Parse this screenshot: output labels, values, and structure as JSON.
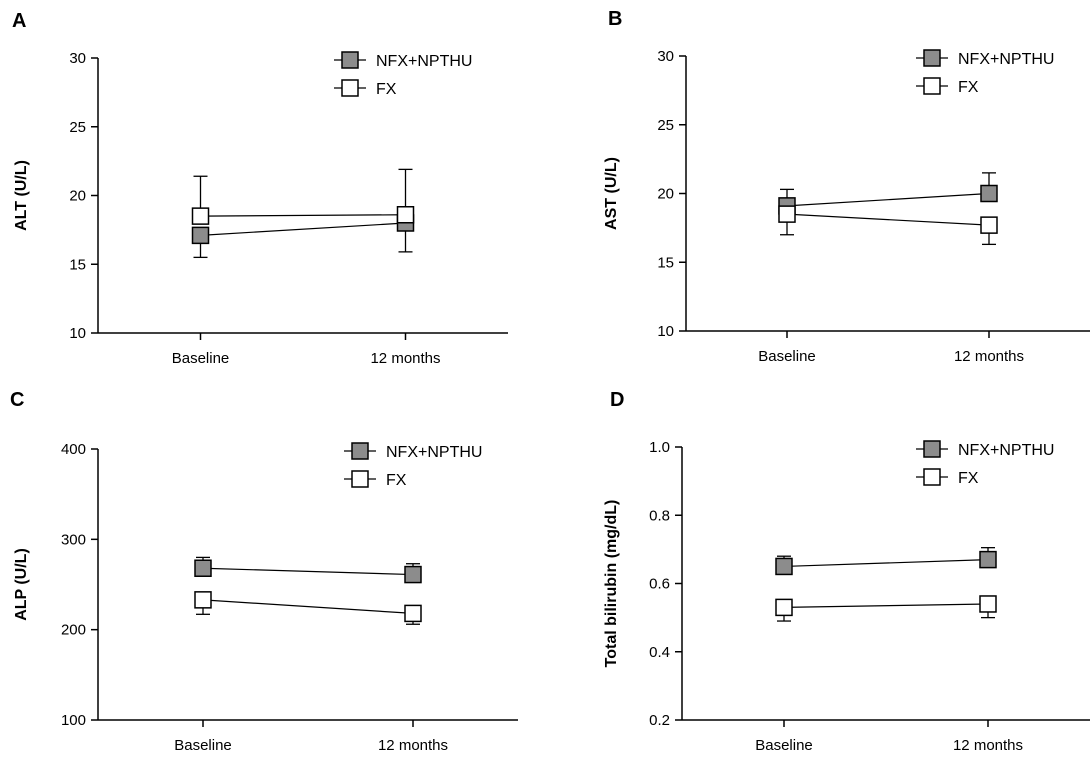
{
  "colors": {
    "series_filled": "#8c8c8c",
    "series_open": "#ffffff",
    "stroke": "#000000"
  },
  "legend": [
    "NFX+NPTHU",
    "FX"
  ],
  "chart_data": [
    {
      "panel": "A",
      "type": "line",
      "title": "",
      "xlabel": "",
      "ylabel": "ALT (U/L)",
      "categories": [
        "Baseline",
        "12 months"
      ],
      "ylim": [
        10,
        30
      ],
      "yticks": [
        10,
        15,
        20,
        25,
        30
      ],
      "yticks_text": [
        "10",
        "15",
        "20",
        "25",
        "30"
      ],
      "legend_position": "top-right",
      "grid": false,
      "series": [
        {
          "name": "NFX+NPTHU",
          "marker": "filled-square",
          "values": [
            17.1,
            18.0
          ],
          "err_down": [
            1.6,
            2.1
          ]
        },
        {
          "name": "FX",
          "marker": "open-square",
          "values": [
            18.5,
            18.6
          ],
          "err_up": [
            2.9,
            3.3
          ]
        }
      ]
    },
    {
      "panel": "B",
      "type": "line",
      "title": "",
      "xlabel": "",
      "ylabel": "AST (U/L)",
      "categories": [
        "Baseline",
        "12 months"
      ],
      "ylim": [
        10,
        30
      ],
      "yticks": [
        10,
        15,
        20,
        25,
        30
      ],
      "yticks_text": [
        "10",
        "15",
        "20",
        "25",
        "30"
      ],
      "legend_position": "top-right",
      "grid": false,
      "series": [
        {
          "name": "NFX+NPTHU",
          "marker": "filled-square",
          "values": [
            19.1,
            20.0
          ],
          "err_up": [
            1.2,
            1.5
          ]
        },
        {
          "name": "FX",
          "marker": "open-square",
          "values": [
            18.5,
            17.7
          ],
          "err_down": [
            1.5,
            1.4
          ]
        }
      ]
    },
    {
      "panel": "C",
      "type": "line",
      "title": "",
      "xlabel": "",
      "ylabel": "ALP (U/L)",
      "categories": [
        "Baseline",
        "12 months"
      ],
      "ylim": [
        100,
        400
      ],
      "yticks": [
        100,
        200,
        300,
        400
      ],
      "yticks_text": [
        "100",
        "200",
        "300",
        "400"
      ],
      "legend_position": "top-right",
      "grid": false,
      "series": [
        {
          "name": "NFX+NPTHU",
          "marker": "filled-square",
          "values": [
            268,
            261
          ],
          "err_up": [
            12,
            12
          ]
        },
        {
          "name": "FX",
          "marker": "open-square",
          "values": [
            233,
            218
          ],
          "err_down": [
            16,
            12
          ]
        }
      ]
    },
    {
      "panel": "D",
      "type": "line",
      "title": "",
      "xlabel": "",
      "ylabel": "Total bilirubin (mg/dL)",
      "categories": [
        "Baseline",
        "12 months"
      ],
      "ylim": [
        0.2,
        1.0
      ],
      "yticks": [
        0.2,
        0.4,
        0.6,
        0.8,
        1.0
      ],
      "yticks_text": [
        "0.2",
        "0.4",
        "0.6",
        "0.8",
        "1.0"
      ],
      "legend_position": "top-right",
      "grid": false,
      "series": [
        {
          "name": "NFX+NPTHU",
          "marker": "filled-square",
          "values": [
            0.65,
            0.67
          ],
          "err_up": [
            0.03,
            0.035
          ]
        },
        {
          "name": "FX",
          "marker": "open-square",
          "values": [
            0.53,
            0.54
          ],
          "err_down": [
            0.04,
            0.04
          ]
        }
      ]
    }
  ]
}
